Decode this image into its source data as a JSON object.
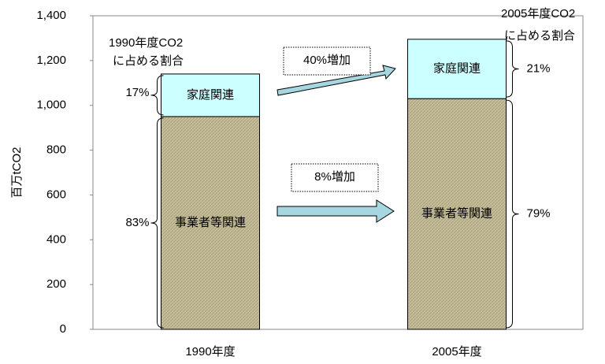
{
  "chart_data": {
    "type": "stacked_bar",
    "categories": [
      "1990年度",
      "2005年度"
    ],
    "series": [
      {
        "name": "事業者等関連",
        "color": "#c4bc96",
        "values": [
          950,
          1030
        ]
      },
      {
        "name": "家庭関連",
        "color": "#ccffff",
        "values": [
          190,
          265
        ]
      }
    ],
    "ylabel": "百万tCO2",
    "ylim": [
      0,
      1400
    ],
    "yticks": [
      0,
      200,
      400,
      600,
      800,
      {
        "value": 1000,
        "label": "1,000"
      },
      {
        "value": 1200,
        "label": "1,200"
      },
      {
        "value": 1400,
        "label": "1,400"
      }
    ],
    "annotations": {
      "share_title_1990": [
        "1990年度CO2",
        "に占める割合"
      ],
      "share_title_2005": [
        "2005年度CO2",
        "に占める割合"
      ],
      "shares_1990": [
        "83%",
        "17%"
      ],
      "shares_2005": [
        "79%",
        "21%"
      ],
      "increase_business": "8%増加",
      "increase_household": "40%増加"
    }
  }
}
